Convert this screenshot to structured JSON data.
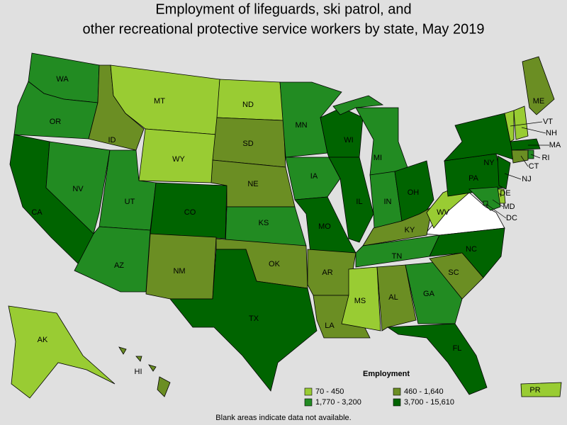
{
  "title_lines": [
    "Employment of lifeguards, ski patrol, and",
    "other recreational protective service workers by state, May 2019"
  ],
  "legend": {
    "title": "Employment",
    "items": [
      {
        "label": "70 - 450",
        "color": "#99cc33"
      },
      {
        "label": "460 - 1,640",
        "color": "#6b8e23"
      },
      {
        "label": "1,770 - 3,200",
        "color": "#228b22"
      },
      {
        "label": "3,700 - 15,610",
        "color": "#006400"
      }
    ]
  },
  "states": [
    {
      "abbr": "WA",
      "class": 2
    },
    {
      "abbr": "OR",
      "class": 2
    },
    {
      "abbr": "CA",
      "class": 3
    },
    {
      "abbr": "NV",
      "class": 2
    },
    {
      "abbr": "ID",
      "class": 1
    },
    {
      "abbr": "MT",
      "class": 0
    },
    {
      "abbr": "WY",
      "class": 0
    },
    {
      "abbr": "UT",
      "class": 2
    },
    {
      "abbr": "AZ",
      "class": 2
    },
    {
      "abbr": "CO",
      "class": 3
    },
    {
      "abbr": "NM",
      "class": 1
    },
    {
      "abbr": "ND",
      "class": 0
    },
    {
      "abbr": "SD",
      "class": 1
    },
    {
      "abbr": "NE",
      "class": 1
    },
    {
      "abbr": "KS",
      "class": 2
    },
    {
      "abbr": "OK",
      "class": 1
    },
    {
      "abbr": "TX",
      "class": 3
    },
    {
      "abbr": "MN",
      "class": 2
    },
    {
      "abbr": "IA",
      "class": 2
    },
    {
      "abbr": "MO",
      "class": 3
    },
    {
      "abbr": "AR",
      "class": 1
    },
    {
      "abbr": "LA",
      "class": 1
    },
    {
      "abbr": "WI",
      "class": 3
    },
    {
      "abbr": "IL",
      "class": 3
    },
    {
      "abbr": "MI",
      "class": 2
    },
    {
      "abbr": "IN",
      "class": 2
    },
    {
      "abbr": "OH",
      "class": 3
    },
    {
      "abbr": "KY",
      "class": 1
    },
    {
      "abbr": "TN",
      "class": 2
    },
    {
      "abbr": "MS",
      "class": 0
    },
    {
      "abbr": "AL",
      "class": 1
    },
    {
      "abbr": "GA",
      "class": 2
    },
    {
      "abbr": "FL",
      "class": 3
    },
    {
      "abbr": "SC",
      "class": 1
    },
    {
      "abbr": "NC",
      "class": 3
    },
    {
      "abbr": "WV",
      "class": 0
    },
    {
      "abbr": "PA",
      "class": 3
    },
    {
      "abbr": "NY",
      "class": 3
    },
    {
      "abbr": "ME",
      "class": 1
    },
    {
      "abbr": "VT",
      "class": 0
    },
    {
      "abbr": "NH",
      "class": 0
    },
    {
      "abbr": "MA",
      "class": 3
    },
    {
      "abbr": "CT",
      "class": 1
    },
    {
      "abbr": "RI",
      "class": 2
    },
    {
      "abbr": "NJ",
      "class": 3
    },
    {
      "abbr": "DE",
      "class": 0
    },
    {
      "abbr": "MD",
      "class": 2
    },
    {
      "abbr": "DC",
      "class": 2
    },
    {
      "abbr": "AK",
      "class": 0
    },
    {
      "abbr": "HI",
      "class": 1
    },
    {
      "abbr": "PR",
      "class": 0
    }
  ],
  "footnote": "Blank areas indicate data not available."
}
